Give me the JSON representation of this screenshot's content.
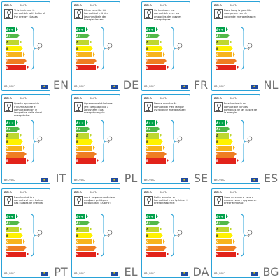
{
  "brand": "EGLO",
  "model": "49474",
  "regulation": "874/2012",
  "classes": [
    {
      "label": "A++",
      "color": "#00a14b"
    },
    {
      "label": "A+",
      "color": "#52b848"
    },
    {
      "label": "A",
      "color": "#bfd730"
    },
    {
      "label": "B",
      "color": "#fff200"
    },
    {
      "label": "C",
      "color": "#f7b31b"
    },
    {
      "label": "D",
      "color": "#ef7d22"
    },
    {
      "label": "E",
      "color": "#e2231a"
    }
  ],
  "labels": [
    {
      "lang": "EN",
      "text": "This luminaire is compatible with bulbs of the energy classes:"
    },
    {
      "lang": "DE",
      "text": "Diese Leuchte ist kompatibel mit den Leuchtmitteln der Energieklassen:"
    },
    {
      "lang": "FR",
      "text": "Ce luminaire est compatible avec les ampoules des classes énergétiques:"
    },
    {
      "lang": "NL",
      "text": "Deze lamp is geschikt voor peren van de volgende energieklassen:"
    },
    {
      "lang": "IT",
      "text": "Questo apparecchio d'illuminazione è compatibile con le lampadine delle classi energetiche:"
    },
    {
      "lang": "PL",
      "text": "Oprawa oświetleniowa jest kompatybilna z żarówkami klas energetycznych:"
    },
    {
      "lang": "SE",
      "text": "Denna armatur är kompatibel med lampor av följande energiklasser:"
    },
    {
      "lang": "ES",
      "text": "Esta luminaria es compatible con las bombillas de las clases de la energía:"
    },
    {
      "lang": "PT",
      "text": "Esta luminária é compatível com bulbos das classes de energia:"
    },
    {
      "lang": "EL",
      "text": "Αυτό το φωτιστικό είναι συμβατό με λάμπες ενεργειακής κλάσης:"
    },
    {
      "lang": "DA",
      "text": "Dette armatur er kompatibel med lyskilder i energiklasserne:"
    },
    {
      "lang": "BG",
      "text": "Осветителното тяло е съвместимо с крушки от енергиен клас:"
    }
  ]
}
